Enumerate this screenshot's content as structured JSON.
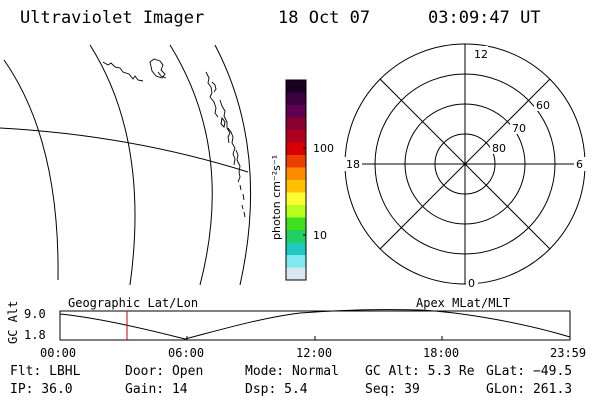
{
  "header": {
    "title": "Ultraviolet Imager",
    "date": "18 Oct 07",
    "time": "03:09:47 UT"
  },
  "colorbar": {
    "unit_label": "photon cm⁻²s⁻¹",
    "ticks": [
      "100",
      "10"
    ],
    "colors": [
      "#1a0020",
      "#3a0040",
      "#600050",
      "#8a0030",
      "#b00020",
      "#d80000",
      "#e84000",
      "#ff8c00",
      "#ffc000",
      "#ffff30",
      "#b8ff20",
      "#40e020",
      "#20d060",
      "#20c8c0",
      "#80e8f0",
      "#d8e8f0"
    ]
  },
  "polar": {
    "mlt_labels": {
      "top": "12",
      "right": "6",
      "bottom": "0",
      "left": "18"
    },
    "lat_labels": [
      "60",
      "70",
      "80"
    ]
  },
  "plot": {
    "left_label": "Geographic Lat/Lon",
    "right_label": "Apex MLat/MLT",
    "ylabel": "GC Alt",
    "ytick_top": "9.0",
    "ytick_bottom": "1.8",
    "xticks": [
      "00:00",
      "06:00",
      "12:00",
      "18:00",
      "23:59"
    ],
    "line_color": "#000000",
    "marker_color": "#cc0000"
  },
  "footer": {
    "flt": "Flt: LBHL",
    "door": "Door: Open",
    "mode": "Mode: Normal",
    "gcalt": "GC Alt: 5.3 Re",
    "glat": "GLat: −49.5",
    "ip": "IP: 36.0",
    "gain": "Gain: 14",
    "dsp": "Dsp:     5.4",
    "seq": "Seq: 39",
    "glon": "GLon: 261.3"
  }
}
